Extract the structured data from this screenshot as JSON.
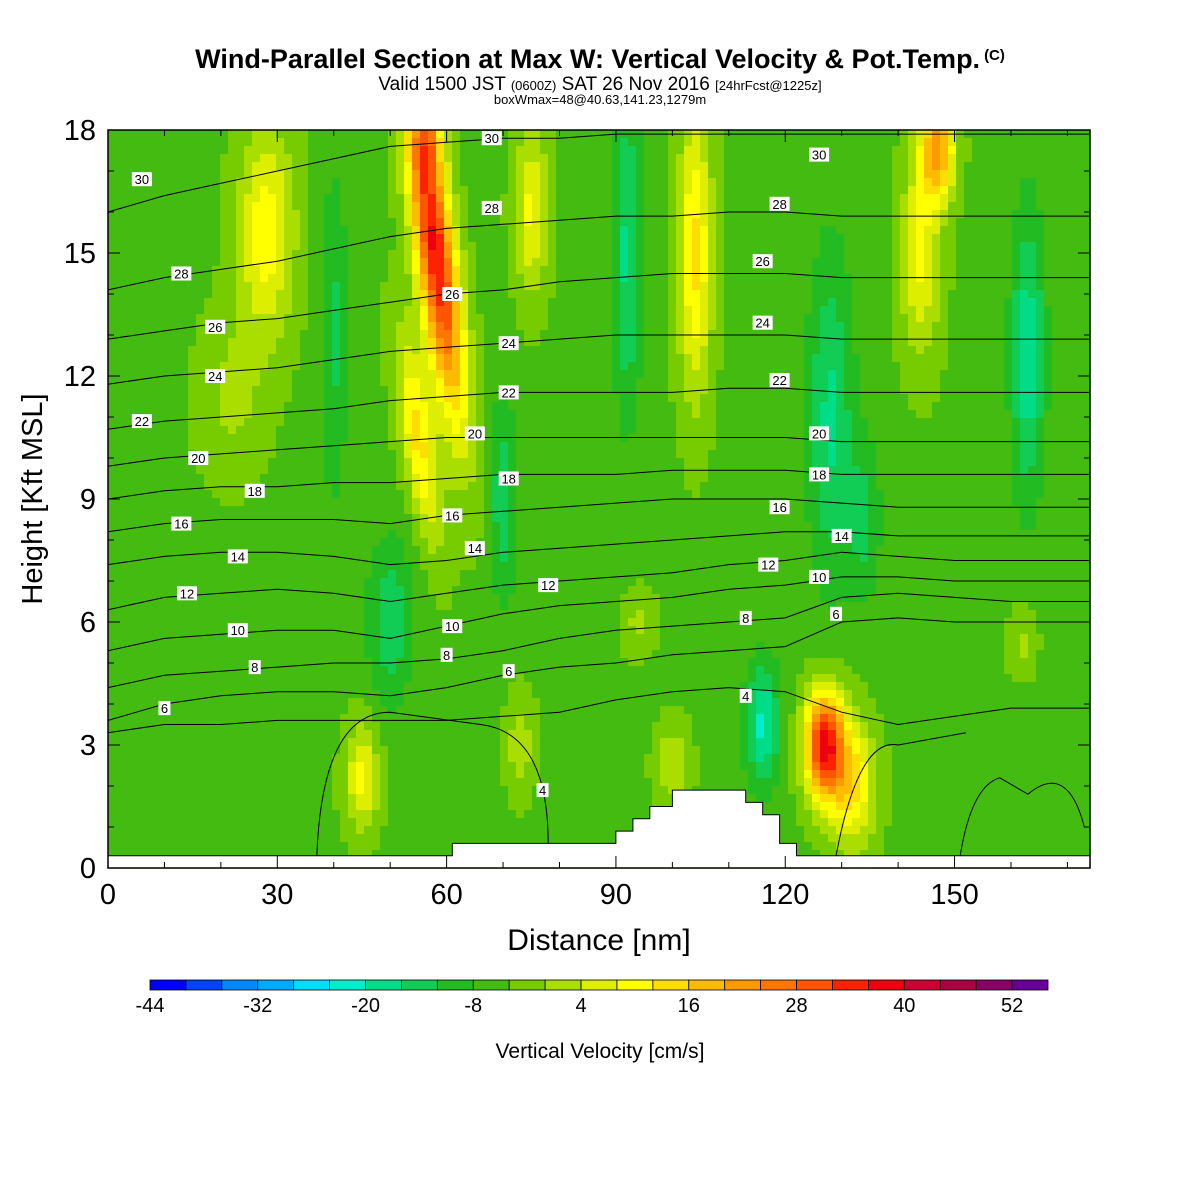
{
  "header": {
    "title": "Wind-Parallel Section at Max W: Vertical Velocity & Pot.Temp.",
    "copyright": "(C)",
    "valid_a": "Valid 1500 JST",
    "valid_b": "(0600Z)",
    "valid_c": "SAT 26 Nov 2016",
    "valid_d": "[24hrFcst@1225z]",
    "box": "boxWmax=48@40.63,141.23,1279m"
  },
  "chart_data": {
    "type": "heatmap",
    "xlabel": "Distance [nm]",
    "ylabel": "Height [Kft MSL]",
    "xlim": [
      0,
      174
    ],
    "ylim": [
      0,
      18
    ],
    "x_ticks": [
      "0",
      "30",
      "60",
      "90",
      "120",
      "150"
    ],
    "y_ticks": [
      "0",
      "3",
      "6",
      "9",
      "12",
      "15",
      "18"
    ],
    "colorbar": {
      "label": "Vertical Velocity [cm/s]",
      "range": [
        -44,
        56
      ],
      "step": 4,
      "tick_labels": [
        "-44",
        "-32",
        "-20",
        "-8",
        "4",
        "16",
        "28",
        "40",
        "52"
      ],
      "colors": [
        "#0000ff",
        "#0044ff",
        "#0088ff",
        "#00aaff",
        "#00ddff",
        "#00eecc",
        "#00dd88",
        "#11cc55",
        "#22bb22",
        "#44bb11",
        "#77cc00",
        "#aadd00",
        "#ddee00",
        "#ffff00",
        "#ffdd00",
        "#ffbb00",
        "#ff9900",
        "#ff7700",
        "#ff5500",
        "#ff2200",
        "#ee0011",
        "#cc0033",
        "#aa0044",
        "#880066",
        "#660099"
      ]
    },
    "w_features": [
      {
        "x": 58,
        "y": 15.0,
        "sx": 3.5,
        "sy": 4.0,
        "w": 42,
        "tilt": -0.9
      },
      {
        "x": 57,
        "y": 17.8,
        "sx": 2.5,
        "sy": 1.0,
        "w": 12,
        "tilt": 0
      },
      {
        "x": 55,
        "y": 10.5,
        "sx": 3.0,
        "sy": 2.5,
        "w": 18,
        "tilt": -1.0
      },
      {
        "x": 127,
        "y": 3.0,
        "sx": 3.5,
        "sy": 1.3,
        "w": 42,
        "tilt": 0
      },
      {
        "x": 132,
        "y": 2.0,
        "sx": 4.0,
        "sy": 1.5,
        "w": 18,
        "tilt": 0
      },
      {
        "x": 45,
        "y": 2.2,
        "sx": 3.0,
        "sy": 1.3,
        "w": 14,
        "tilt": 0
      },
      {
        "x": 73,
        "y": 3.0,
        "sx": 2.5,
        "sy": 1.2,
        "w": 8,
        "tilt": 0
      },
      {
        "x": 100,
        "y": 2.5,
        "sx": 3.0,
        "sy": 1.0,
        "w": 9,
        "tilt": 0
      },
      {
        "x": 28,
        "y": 15.5,
        "sx": 5.0,
        "sy": 2.5,
        "w": 16,
        "tilt": 0
      },
      {
        "x": 22,
        "y": 11.5,
        "sx": 6.0,
        "sy": 2.0,
        "w": 6,
        "tilt": 0
      },
      {
        "x": 104,
        "y": 15.0,
        "sx": 3.0,
        "sy": 3.5,
        "w": 18,
        "tilt": 0
      },
      {
        "x": 147,
        "y": 17.5,
        "sx": 3.0,
        "sy": 1.2,
        "w": 26,
        "tilt": 0
      },
      {
        "x": 144,
        "y": 15.0,
        "sx": 3.5,
        "sy": 2.5,
        "w": 14,
        "tilt": 0
      },
      {
        "x": 75,
        "y": 16.0,
        "sx": 3.0,
        "sy": 2.0,
        "w": 14,
        "tilt": 0
      },
      {
        "x": 94,
        "y": 6.0,
        "sx": 3.0,
        "sy": 0.8,
        "w": 6,
        "tilt": 0
      },
      {
        "x": 162,
        "y": 5.5,
        "sx": 2.5,
        "sy": 0.8,
        "w": 6,
        "tilt": 0
      },
      {
        "x": 40,
        "y": 13.0,
        "sx": 2.5,
        "sy": 4.0,
        "w": -8,
        "tilt": 0
      },
      {
        "x": 50,
        "y": 6.0,
        "sx": 4.0,
        "sy": 2.0,
        "w": -10,
        "tilt": 0
      },
      {
        "x": 70,
        "y": 9.0,
        "sx": 2.5,
        "sy": 2.5,
        "w": -10,
        "tilt": 0
      },
      {
        "x": 92,
        "y": 15.0,
        "sx": 2.5,
        "sy": 4.0,
        "w": -12,
        "tilt": 0
      },
      {
        "x": 116,
        "y": 3.5,
        "sx": 3.0,
        "sy": 1.5,
        "w": -16,
        "tilt": 0
      },
      {
        "x": 128,
        "y": 11.0,
        "sx": 4.0,
        "sy": 4.0,
        "w": -12,
        "tilt": 0
      },
      {
        "x": 163,
        "y": 12.5,
        "sx": 3.0,
        "sy": 3.5,
        "w": -14,
        "tilt": 0
      },
      {
        "x": 134,
        "y": 8.5,
        "sx": 3.0,
        "sy": 2.0,
        "w": -8,
        "tilt": 0
      }
    ],
    "w_background": -5,
    "theta_contours": [
      {
        "label": "4",
        "y": [
          3.3,
          3.5,
          3.5,
          3.6,
          3.6,
          3.6,
          3.6,
          3.7,
          3.8,
          4.1,
          4.3,
          4.4,
          4.3,
          3.8,
          3.5,
          3.7,
          3.9,
          3.9
        ]
      },
      {
        "label": "6",
        "y": [
          3.6,
          4.0,
          4.2,
          4.3,
          4.3,
          4.2,
          4.4,
          4.7,
          4.9,
          5.0,
          5.2,
          5.3,
          5.4,
          6.0,
          6.1,
          6.0,
          6.0,
          6.0
        ]
      },
      {
        "label": "8",
        "y": [
          4.4,
          4.7,
          4.8,
          4.9,
          5.0,
          5.0,
          5.1,
          5.3,
          5.6,
          5.8,
          5.9,
          6.0,
          6.1,
          6.6,
          6.7,
          6.6,
          6.5,
          6.5
        ]
      },
      {
        "label": "10",
        "y": [
          5.3,
          5.6,
          5.7,
          5.8,
          5.8,
          5.6,
          5.9,
          6.2,
          6.4,
          6.5,
          6.6,
          6.8,
          6.9,
          7.1,
          7.1,
          7.0,
          7.0,
          7.0
        ]
      },
      {
        "label": "12",
        "y": [
          6.3,
          6.6,
          6.7,
          6.8,
          6.7,
          6.5,
          6.7,
          6.9,
          7.0,
          7.1,
          7.2,
          7.4,
          7.5,
          7.7,
          7.6,
          7.5,
          7.5,
          7.5
        ]
      },
      {
        "label": "14",
        "y": [
          7.4,
          7.6,
          7.7,
          7.7,
          7.6,
          7.4,
          7.5,
          7.7,
          7.8,
          7.9,
          8.0,
          8.1,
          8.2,
          8.2,
          8.1,
          8.1,
          8.1,
          8.1
        ]
      },
      {
        "label": "16",
        "y": [
          8.2,
          8.4,
          8.5,
          8.5,
          8.5,
          8.4,
          8.6,
          8.7,
          8.8,
          8.9,
          9.0,
          9.0,
          9.0,
          8.9,
          8.8,
          8.8,
          8.8,
          8.8
        ]
      },
      {
        "label": "18",
        "y": [
          9.0,
          9.2,
          9.3,
          9.3,
          9.4,
          9.4,
          9.5,
          9.6,
          9.6,
          9.6,
          9.7,
          9.7,
          9.7,
          9.6,
          9.6,
          9.6,
          9.6,
          9.6
        ]
      },
      {
        "label": "20",
        "y": [
          9.8,
          10.0,
          10.1,
          10.2,
          10.3,
          10.4,
          10.5,
          10.5,
          10.5,
          10.5,
          10.5,
          10.5,
          10.5,
          10.4,
          10.4,
          10.4,
          10.4,
          10.4
        ]
      },
      {
        "label": "22",
        "y": [
          10.7,
          10.9,
          11.0,
          11.1,
          11.2,
          11.4,
          11.5,
          11.6,
          11.6,
          11.6,
          11.6,
          11.7,
          11.7,
          11.6,
          11.6,
          11.6,
          11.6,
          11.6
        ]
      },
      {
        "label": "24",
        "y": [
          11.8,
          12.0,
          12.1,
          12.2,
          12.4,
          12.6,
          12.7,
          12.8,
          12.9,
          13.0,
          13.0,
          13.0,
          13.0,
          12.9,
          12.9,
          12.9,
          12.9,
          12.9
        ]
      },
      {
        "label": "26",
        "y": [
          12.9,
          13.1,
          13.3,
          13.4,
          13.6,
          13.8,
          14.0,
          14.1,
          14.3,
          14.4,
          14.5,
          14.5,
          14.5,
          14.4,
          14.4,
          14.4,
          14.4,
          14.4
        ]
      },
      {
        "label": "28",
        "y": [
          14.1,
          14.4,
          14.6,
          14.8,
          15.1,
          15.4,
          15.6,
          15.7,
          15.8,
          15.9,
          15.9,
          16.0,
          16.0,
          15.9,
          15.9,
          15.9,
          15.9,
          15.9
        ]
      },
      {
        "label": "30",
        "y": [
          16.0,
          16.4,
          16.7,
          17.0,
          17.3,
          17.6,
          17.7,
          17.8,
          17.8,
          17.9,
          17.9,
          17.9,
          17.9,
          17.9,
          17.9,
          17.9,
          17.9,
          17.9
        ]
      }
    ],
    "theta_x": [
      0,
      10,
      20,
      30,
      40,
      50,
      60,
      70,
      80,
      90,
      100,
      110,
      120,
      130,
      140,
      150,
      160,
      174
    ],
    "theta_labels": [
      {
        "text": "30",
        "x": 6,
        "y": 16.8
      },
      {
        "text": "30",
        "x": 68,
        "y": 17.8
      },
      {
        "text": "30",
        "x": 126,
        "y": 17.4
      },
      {
        "text": "28",
        "x": 13,
        "y": 14.5
      },
      {
        "text": "28",
        "x": 68,
        "y": 16.1
      },
      {
        "text": "28",
        "x": 119,
        "y": 16.2
      },
      {
        "text": "26",
        "x": 19,
        "y": 13.2
      },
      {
        "text": "26",
        "x": 61,
        "y": 14.0
      },
      {
        "text": "26",
        "x": 116,
        "y": 14.8
      },
      {
        "text": "24",
        "x": 19,
        "y": 12.0
      },
      {
        "text": "24",
        "x": 71,
        "y": 12.8
      },
      {
        "text": "24",
        "x": 116,
        "y": 13.3
      },
      {
        "text": "22",
        "x": 6,
        "y": 10.9
      },
      {
        "text": "22",
        "x": 71,
        "y": 11.6
      },
      {
        "text": "22",
        "x": 119,
        "y": 11.9
      },
      {
        "text": "20",
        "x": 16,
        "y": 10.0
      },
      {
        "text": "20",
        "x": 65,
        "y": 10.6
      },
      {
        "text": "20",
        "x": 126,
        "y": 10.6
      },
      {
        "text": "18",
        "x": 26,
        "y": 9.2
      },
      {
        "text": "18",
        "x": 71,
        "y": 9.5
      },
      {
        "text": "18",
        "x": 126,
        "y": 9.6
      },
      {
        "text": "16",
        "x": 13,
        "y": 8.4
      },
      {
        "text": "16",
        "x": 61,
        "y": 8.6
      },
      {
        "text": "16",
        "x": 119,
        "y": 8.8
      },
      {
        "text": "14",
        "x": 23,
        "y": 7.6
      },
      {
        "text": "14",
        "x": 65,
        "y": 7.8
      },
      {
        "text": "14",
        "x": 130,
        "y": 8.1
      },
      {
        "text": "12",
        "x": 14,
        "y": 6.7
      },
      {
        "text": "12",
        "x": 78,
        "y": 6.9
      },
      {
        "text": "12",
        "x": 117,
        "y": 7.4
      },
      {
        "text": "10",
        "x": 23,
        "y": 5.8
      },
      {
        "text": "10",
        "x": 61,
        "y": 5.9
      },
      {
        "text": "10",
        "x": 126,
        "y": 7.1
      },
      {
        "text": "8",
        "x": 26,
        "y": 4.9
      },
      {
        "text": "8",
        "x": 60,
        "y": 5.2
      },
      {
        "text": "8",
        "x": 113,
        "y": 6.1
      },
      {
        "text": "6",
        "x": 10,
        "y": 3.9
      },
      {
        "text": "6",
        "x": 71,
        "y": 4.8
      },
      {
        "text": "6",
        "x": 129,
        "y": 6.2
      },
      {
        "text": "4",
        "x": 113,
        "y": 4.2
      },
      {
        "text": "4",
        "x": 77,
        "y": 1.9
      }
    ],
    "terrain": [
      [
        0,
        0.3
      ],
      [
        61,
        0.3
      ],
      [
        61,
        0.6
      ],
      [
        90,
        0.6
      ],
      [
        90,
        0.9
      ],
      [
        93,
        0.9
      ],
      [
        93,
        1.2
      ],
      [
        96,
        1.2
      ],
      [
        96,
        1.5
      ],
      [
        100,
        1.5
      ],
      [
        100,
        1.9
      ],
      [
        113,
        1.9
      ],
      [
        113,
        1.6
      ],
      [
        116,
        1.6
      ],
      [
        116,
        1.3
      ],
      [
        119,
        1.3
      ],
      [
        119,
        0.6
      ],
      [
        122,
        0.6
      ],
      [
        122,
        0.3
      ],
      [
        174,
        0.3
      ]
    ]
  }
}
